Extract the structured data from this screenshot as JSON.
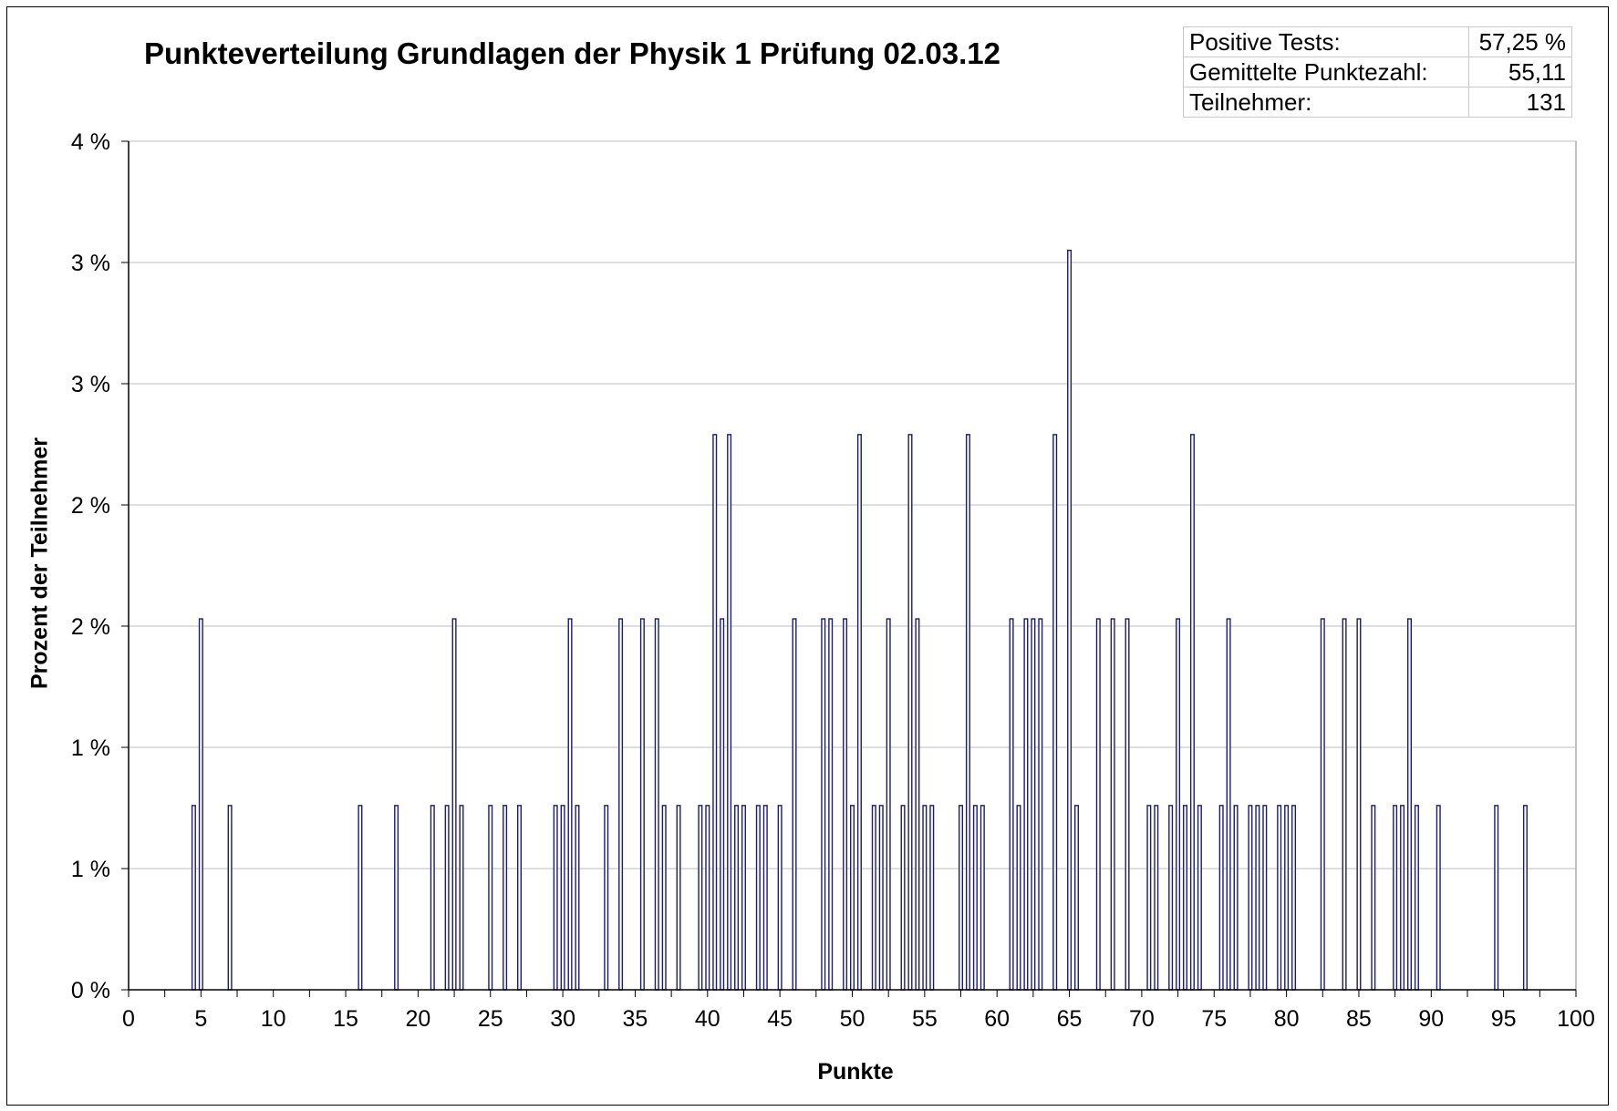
{
  "chart_data": {
    "type": "bar",
    "title": "Punkteverteilung Grundlagen der Physik 1 Prüfung 02.03.12",
    "xlabel": "Punkte",
    "ylabel": "Prozent der Teilnehmer",
    "xlim": [
      0,
      100
    ],
    "ylim": [
      0,
      3.5
    ],
    "x_ticks": [
      0,
      5,
      10,
      15,
      20,
      25,
      30,
      35,
      40,
      45,
      50,
      55,
      60,
      65,
      70,
      75,
      80,
      85,
      90,
      95,
      100
    ],
    "y_ticks": [
      0,
      0.5,
      1,
      1.5,
      2,
      2.5,
      3,
      3.5
    ],
    "y_tick_labels": [
      "0 %",
      "1 %",
      "1 %",
      "2 %",
      "2 %",
      "3 %",
      "3 %",
      "4 %"
    ],
    "grid": true,
    "legend": "none",
    "bar_fill": "#ffffff",
    "bar_stroke": "#1a1a7a",
    "series": [
      {
        "points": [
          [
            4.5,
            0.76
          ],
          [
            5,
            1.53
          ],
          [
            7,
            0.76
          ],
          [
            16,
            0.76
          ],
          [
            18.5,
            0.76
          ],
          [
            21,
            0.76
          ],
          [
            22,
            0.76
          ],
          [
            22.5,
            1.53
          ],
          [
            23,
            0.76
          ],
          [
            25,
            0.76
          ],
          [
            26,
            0.76
          ],
          [
            27,
            0.76
          ],
          [
            29.5,
            0.76
          ],
          [
            30,
            0.76
          ],
          [
            30.5,
            1.53
          ],
          [
            31,
            0.76
          ],
          [
            33,
            0.76
          ],
          [
            34,
            1.53
          ],
          [
            35.5,
            1.53
          ],
          [
            36.5,
            1.53
          ],
          [
            37,
            0.76
          ],
          [
            38,
            0.76
          ],
          [
            39.5,
            0.76
          ],
          [
            40,
            0.76
          ],
          [
            40.5,
            2.29
          ],
          [
            41,
            1.53
          ],
          [
            41.5,
            2.29
          ],
          [
            42,
            0.76
          ],
          [
            42.5,
            0.76
          ],
          [
            43.5,
            0.76
          ],
          [
            44,
            0.76
          ],
          [
            45,
            0.76
          ],
          [
            46,
            1.53
          ],
          [
            48,
            1.53
          ],
          [
            48.5,
            1.53
          ],
          [
            49.5,
            1.53
          ],
          [
            50,
            0.76
          ],
          [
            50.5,
            2.29
          ],
          [
            51.5,
            0.76
          ],
          [
            52,
            0.76
          ],
          [
            52.5,
            1.53
          ],
          [
            53.5,
            0.76
          ],
          [
            54,
            2.29
          ],
          [
            54.5,
            1.53
          ],
          [
            55,
            0.76
          ],
          [
            55.5,
            0.76
          ],
          [
            57.5,
            0.76
          ],
          [
            58,
            2.29
          ],
          [
            58.5,
            0.76
          ],
          [
            59,
            0.76
          ],
          [
            61,
            1.53
          ],
          [
            61.5,
            0.76
          ],
          [
            62,
            1.53
          ],
          [
            62.5,
            1.53
          ],
          [
            63,
            1.53
          ],
          [
            64,
            2.29
          ],
          [
            65,
            3.05
          ],
          [
            65.5,
            0.76
          ],
          [
            67,
            1.53
          ],
          [
            68,
            1.53
          ],
          [
            69,
            1.53
          ],
          [
            70.5,
            0.76
          ],
          [
            71,
            0.76
          ],
          [
            72,
            0.76
          ],
          [
            72.5,
            1.53
          ],
          [
            73,
            0.76
          ],
          [
            73.5,
            2.29
          ],
          [
            74,
            0.76
          ],
          [
            75.5,
            0.76
          ],
          [
            76,
            1.53
          ],
          [
            76.5,
            0.76
          ],
          [
            77.5,
            0.76
          ],
          [
            78,
            0.76
          ],
          [
            78.5,
            0.76
          ],
          [
            79.5,
            0.76
          ],
          [
            80,
            0.76
          ],
          [
            80.5,
            0.76
          ],
          [
            82.5,
            1.53
          ],
          [
            84,
            1.53
          ],
          [
            85,
            1.53
          ],
          [
            86,
            0.76
          ],
          [
            87.5,
            0.76
          ],
          [
            88,
            0.76
          ],
          [
            88.5,
            1.53
          ],
          [
            89,
            0.76
          ],
          [
            90.5,
            0.76
          ],
          [
            94.5,
            0.76
          ],
          [
            96.5,
            0.76
          ]
        ]
      }
    ]
  },
  "stats": {
    "rows": [
      {
        "label": "Positive Tests:",
        "value": "57,25 %"
      },
      {
        "label": "Gemittelte Punktezahl:",
        "value": "55,11"
      },
      {
        "label": "Teilnehmer:",
        "value": "131"
      }
    ]
  }
}
